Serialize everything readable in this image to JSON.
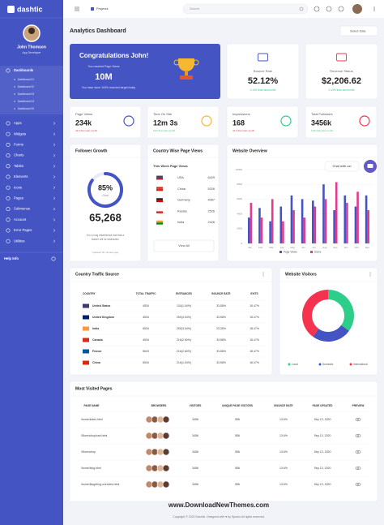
{
  "sidebar": {
    "brand": "dashtic",
    "user_name": "John Thomson",
    "user_role": "App Developer",
    "dashboards": "Dashboards",
    "dashboard_links": [
      "Dashboard 01",
      "Dashboard 02",
      "Dashboard 03",
      "Dashboard 04",
      "Dashboard 05"
    ],
    "menu": [
      "Apps",
      "Widgets",
      "Forms",
      "Charts",
      "Tables",
      "Elements",
      "Icons",
      "Pages",
      "Submenus",
      "Account",
      "Error Pages",
      "Utilities"
    ],
    "help": "Help Info"
  },
  "header": {
    "projects": "Projects",
    "search": "Search"
  },
  "page": {
    "title": "Analytics Dashboard",
    "select_date": "Select Date"
  },
  "congrats": {
    "title": "Congratulations John!",
    "subtitle": "You reached Page Views",
    "value": "10M",
    "note": "You have done 100% reached target today"
  },
  "stats": [
    {
      "label": "Bounce Rate",
      "value": "52.12%",
      "change": "0.14% than last month"
    },
    {
      "label": "Revenue Status",
      "value": "$2,206.62",
      "change": "0.14% than last month"
    },
    {
      "label": "Page Views",
      "value": "234k",
      "change": "42.6 than last month"
    },
    {
      "label": "Time On Site",
      "value": "12m 3s",
      "change": "19.6 than last month"
    },
    {
      "label": "Impressions",
      "value": "168",
      "change": "42.6 than last month"
    },
    {
      "label": "Total Followers",
      "value": "3456k",
      "change": "0.6k than last month"
    }
  ],
  "follower_growth": {
    "title": "Follower Growth",
    "progress": 85,
    "progress_label": "85%",
    "goal": "Goal",
    "count": "65,268",
    "description": [
      "It is a long established fact that a",
      "reader will be distracted."
    ],
    "updated": "Updated 30 minutes ago"
  },
  "country_views": {
    "title": "Country Wise Page Views",
    "subtitle": "This Week Page Views",
    "rows": [
      [
        "USA",
        "6429"
      ],
      [
        "China",
        "5326"
      ],
      [
        "Germany",
        "4067"
      ],
      [
        "Russia",
        "2526"
      ],
      [
        "India",
        "2426"
      ]
    ],
    "button": "View All"
  },
  "chart_data": [
    {
      "type": "bar",
      "title": "Website Overview",
      "categories": [
        "Jan",
        "Feb",
        "Mar",
        "Apr",
        "May",
        "Jun",
        "Jul",
        "Aug",
        "Sep",
        "Oct",
        "Nov",
        "Dec"
      ],
      "series": [
        {
          "name": "Page Views",
          "color": "#4454c3",
          "values": [
            3500,
            4800,
            3000,
            5000,
            6500,
            6000,
            5800,
            8000,
            4500,
            6500,
            5000,
            6500
          ]
        },
        {
          "name": "Users",
          "color": "#e03b8d",
          "values": [
            5500,
            3500,
            6000,
            3000,
            4500,
            3500,
            5000,
            6000,
            8300,
            5500,
            7000,
            4500
          ]
        }
      ],
      "ylim": [
        0,
        10000
      ],
      "yticks": [
        0,
        2000,
        4000,
        6000,
        8000,
        10000
      ],
      "grid": true
    },
    {
      "type": "pie",
      "title": "Website Visitors",
      "categories": [
        "Local",
        "Domestic",
        "International"
      ],
      "values": [
        35,
        25,
        40
      ],
      "colors": [
        "#2dce89",
        "#4454c3",
        "#f5334f"
      ]
    }
  ],
  "chat": "Chat with us!",
  "traffic": {
    "title": "Country Traffic Source",
    "columns": [
      "COUNTRY",
      "TOTAL TRAFFIC",
      "ENTRANCES",
      "BOUNCE RATE",
      "EXITS"
    ],
    "rows": [
      [
        "United States",
        "4534",
        "134(1.04%)",
        "33.58%",
        "15.47%"
      ],
      [
        "United Kingdom",
        "4534",
        "250(4.04%)",
        "33.58%",
        "15.47%"
      ],
      [
        "India",
        "6534",
        "250(3.04%)",
        "23.35%",
        "18.47%"
      ],
      [
        "Canada",
        "4534",
        "216(2.60%)",
        "33.58%",
        "15.47%"
      ],
      [
        "France",
        "5643",
        "216(2.60%)",
        "33.58%",
        "18.47%"
      ],
      [
        "China",
        "6534",
        "216(1.04%)",
        "33.58%",
        "16.47%"
      ]
    ]
  },
  "pages": {
    "title": "Most Visited Pages",
    "columns": [
      "PAGE NAME",
      "BROWSERS",
      "VISITORS",
      "UNIQUE PAGE VISITORS",
      "BOUNCE RATE",
      "PAGE UPDATED",
      "PREVIEW"
    ],
    "rows": [
      [
        "/home/index.html",
        "3456",
        "556",
        "13.6%",
        "Sep 13, 2020"
      ],
      [
        "/Store/shop/cart.html",
        "3456",
        "556",
        "13.6%",
        "Sep 13, 2020"
      ],
      [
        "/Store/shop",
        "3456",
        "556",
        "13.6%",
        "Sep 13, 2020"
      ],
      [
        "/home/blog.html",
        "3456",
        "556",
        "13.6%",
        "Sep 13, 2020"
      ],
      [
        "/home/blog/blog-overview.html",
        "3456",
        "556",
        "13.6%",
        "Sep 13, 2020"
      ]
    ]
  },
  "watermark": "www.DownloadNewThemes.com",
  "footer": "Copyright © 2022 Dashtic. Designed with ♥ by Spruko All rights reserved."
}
